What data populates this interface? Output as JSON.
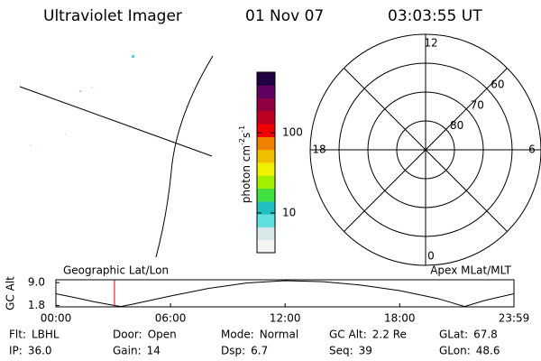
{
  "header": {
    "instrument": "Ultraviolet Imager",
    "date": "01 Nov 07",
    "time": "03:03:55 UT"
  },
  "colorbar": {
    "label_parts": [
      "photon cm",
      "-2",
      "s",
      "-1"
    ],
    "log": true,
    "lim": [
      3.2,
      570
    ],
    "ticks": [
      10,
      100
    ],
    "colors": [
      "#f4f4f4",
      "#d8e8e8",
      "#60e0e0",
      "#20c0c0",
      "#40e040",
      "#a0f000",
      "#f0f000",
      "#f0c000",
      "#f08000",
      "#f00000",
      "#c00020",
      "#900040",
      "#600060",
      "#200040"
    ]
  },
  "polar": {
    "lat_lim": [
      50,
      90
    ],
    "lat_rings": [
      60,
      70,
      80
    ],
    "mlt_labels": [
      12,
      6,
      0,
      18
    ]
  },
  "chart_data": {
    "type": "line",
    "y_label": "GC Alt",
    "left_label": "Geographic Lat/Lon",
    "right_label": "Apex MLat/MLT",
    "x": [
      0,
      1,
      2,
      3,
      3.4,
      4,
      6,
      8,
      10,
      12,
      14,
      16,
      18,
      20,
      21.4,
      22.5,
      23.98
    ],
    "series": [
      {
        "color": "#000000",
        "values": [
          5.5,
          4.3,
          3.0,
          1.9,
          1.5,
          2.2,
          4.8,
          7.2,
          8.9,
          9.6,
          9.3,
          8.2,
          6.5,
          4.0,
          1.5,
          3.5,
          5.5
        ]
      }
    ],
    "marker_time": 3.066,
    "marker_color": "#e00000",
    "xlim": [
      0,
      23.983
    ],
    "ylim": [
      1.4,
      9.9
    ],
    "xticks": [
      {
        "value": 0,
        "label": "00:00"
      },
      {
        "value": 6,
        "label": "06:00"
      },
      {
        "value": 12,
        "label": "12:00"
      },
      {
        "value": 18,
        "label": "18:00"
      },
      {
        "value": 23.983,
        "label": "23:59"
      }
    ],
    "yticks": [
      1.8,
      {
        "value": 9,
        "label": "9.0"
      }
    ]
  },
  "footer": {
    "rows": [
      [
        {
          "key": "Flt:",
          "val": "LBHL"
        },
        {
          "key": "Door:",
          "val": "Open"
        },
        {
          "key": "Mode:",
          "val": "Normal"
        },
        {
          "key": "GC Alt:",
          "val": "2.2 Re"
        },
        {
          "key": "GLat:",
          "val": "67.8"
        }
      ],
      [
        {
          "key": "IP:",
          "val": "36.0"
        },
        {
          "key": "Gain:",
          "val": "14"
        },
        {
          "key": "Dsp:",
          "val": "6.7"
        },
        {
          "key": "Seq:",
          "val": "39"
        },
        {
          "key": "GLon:",
          "val": "48.6"
        }
      ]
    ]
  }
}
